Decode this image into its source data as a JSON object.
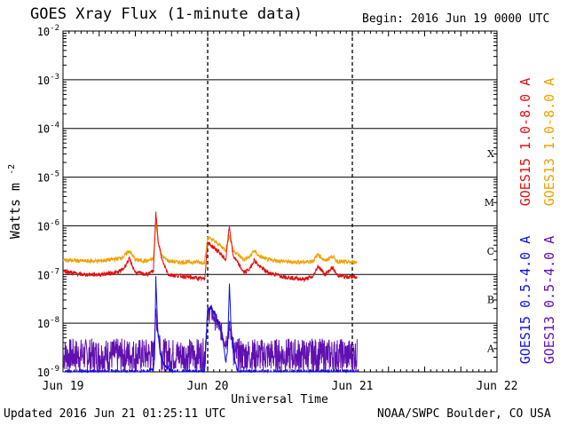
{
  "header": {
    "title": "GOES Xray Flux (1-minute data)",
    "begin": "Begin:  2016 Jun 19 0000 UTC"
  },
  "footer": {
    "updated": "Updated 2016 Jun 21 01:25:11 UTC",
    "credit": "NOAA/SWPC Boulder, CO USA"
  },
  "chart_data": {
    "type": "line",
    "title": "GOES Xray Flux (1-minute data)",
    "xlabel": "Universal Time",
    "ylabel": "Watts m",
    "ylabel_sup": "-2",
    "yscale": "log",
    "ylim": [
      1e-09,
      0.01
    ],
    "xlim": [
      0,
      72
    ],
    "x_unit": "hours since 2016 Jun 19 0000 UTC",
    "x_ticks": [
      {
        "x": 0,
        "label": "Jun 19"
      },
      {
        "x": 24,
        "label": "Jun 20"
      },
      {
        "x": 48,
        "label": "Jun 21"
      },
      {
        "x": 72,
        "label": "Jun 22"
      }
    ],
    "y_ticks": [
      {
        "exp": -2
      },
      {
        "exp": -3
      },
      {
        "exp": -4
      },
      {
        "exp": -5
      },
      {
        "exp": -6
      },
      {
        "exp": -7
      },
      {
        "exp": -8
      },
      {
        "exp": -9
      }
    ],
    "flare_classes": [
      {
        "label": "X",
        "exp": -4
      },
      {
        "label": "M",
        "exp": -5
      },
      {
        "label": "C",
        "exp": -6
      },
      {
        "label": "B",
        "exp": -7
      },
      {
        "label": "A",
        "exp": -8
      }
    ],
    "grid": {
      "horizontal": true,
      "vertical_dashed": true
    },
    "legend_placement": "right",
    "series": [
      {
        "name": "GOES15 1.0-8.0 A",
        "color": "#e01010",
        "x": [
          0,
          3,
          6,
          9,
          10,
          11,
          12,
          14,
          15,
          15.4,
          15.8,
          16.4,
          17.5,
          19,
          22,
          23.5,
          24,
          25,
          26,
          27,
          27.6,
          28.2,
          30,
          31,
          31.7,
          32.5,
          34,
          36,
          38,
          40,
          41.5,
          42.3,
          43.5,
          44.7,
          45.4,
          46.5,
          48,
          48.8
        ],
        "y": [
          1.2e-07,
          1e-07,
          1e-07,
          1.1e-07,
          1.3e-07,
          2.1e-07,
          1.1e-07,
          1e-07,
          1.2e-07,
          1.8e-06,
          5e-07,
          2e-07,
          1e-07,
          9.5e-08,
          8.5e-08,
          8e-08,
          4.5e-07,
          3.6e-07,
          2.8e-07,
          2e-07,
          1e-06,
          2.5e-07,
          1.1e-07,
          1.3e-07,
          2e-07,
          1.5e-07,
          1.1e-07,
          9.5e-08,
          8.5e-08,
          8e-08,
          9e-08,
          1.5e-07,
          1e-07,
          1.4e-07,
          1e-07,
          9e-08,
          9e-08,
          8.5e-08
        ]
      },
      {
        "name": "GOES13 1.0-8.0 A",
        "color": "#f0a000",
        "x": [
          0,
          3,
          6,
          9,
          10,
          11,
          12,
          14,
          15,
          15.4,
          15.8,
          16.4,
          17.5,
          19,
          22,
          23.5,
          24,
          25,
          26,
          27,
          27.6,
          28.2,
          30,
          31,
          31.7,
          32.5,
          34,
          36,
          38,
          40,
          41.5,
          42.3,
          43.5,
          44.7,
          45.4,
          46.5,
          48,
          48.8
        ],
        "y": [
          2e-07,
          1.9e-07,
          1.9e-07,
          2.1e-07,
          2.3e-07,
          3.1e-07,
          2e-07,
          1.9e-07,
          2.1e-07,
          1.2e-06,
          4.5e-07,
          2.4e-07,
          1.9e-07,
          1.8e-07,
          1.8e-07,
          1.8e-07,
          5.8e-07,
          5e-07,
          4e-07,
          3.2e-07,
          6.5e-07,
          3.2e-07,
          2e-07,
          2.3e-07,
          3.1e-07,
          2.4e-07,
          2e-07,
          1.9e-07,
          1.8e-07,
          1.8e-07,
          1.9e-07,
          2.6e-07,
          1.9e-07,
          2.4e-07,
          1.9e-07,
          1.8e-07,
          1.8e-07,
          1.8e-07
        ]
      },
      {
        "name": "GOES15 0.5-4.0 A",
        "color": "#1010e0",
        "x": [
          0,
          10,
          14,
          15,
          15.2,
          15.4,
          15.7,
          16.1,
          16.6,
          17.4,
          18.4,
          20,
          23.5,
          24,
          24.5,
          25.4,
          26.4,
          27,
          27.3,
          27.6,
          27.9,
          28.3,
          29,
          30,
          34,
          40,
          46,
          48.8
        ],
        "y": [
          1e-09,
          1e-09,
          1e-09,
          1.2e-09,
          2e-09,
          8.5e-08,
          8e-09,
          2.5e-09,
          1.5e-09,
          1.2e-09,
          1e-09,
          1e-09,
          1e-09,
          1.8e-08,
          2.2e-08,
          1.4e-08,
          6e-09,
          1.5e-09,
          3e-09,
          6e-08,
          8e-09,
          2e-09,
          1e-09,
          1e-09,
          1e-09,
          1e-09,
          1e-09,
          1e-09
        ]
      },
      {
        "name": "GOES13 0.5-4.0 A",
        "color": "#6010b0",
        "noise": {
          "low": 1e-09,
          "high": 3.5e-09
        },
        "x": [
          0,
          10,
          14,
          15,
          15.4,
          15.9,
          16.6,
          17.5,
          19,
          23.5,
          24,
          24.4,
          25.2,
          26.2,
          27,
          27.6,
          28.3,
          29.5,
          31,
          34,
          40,
          46,
          48.8
        ],
        "y": [
          2.5e-09,
          2.5e-09,
          2.5e-09,
          3e-09,
          1.5e-08,
          5e-09,
          3e-09,
          2.5e-09,
          2.5e-09,
          2.5e-09,
          1.5e-08,
          1.8e-08,
          1.2e-08,
          7e-09,
          4e-09,
          8e-09,
          4e-09,
          3e-09,
          2.5e-09,
          2.5e-09,
          2.5e-09,
          2.5e-09,
          2.5e-09
        ]
      }
    ]
  }
}
